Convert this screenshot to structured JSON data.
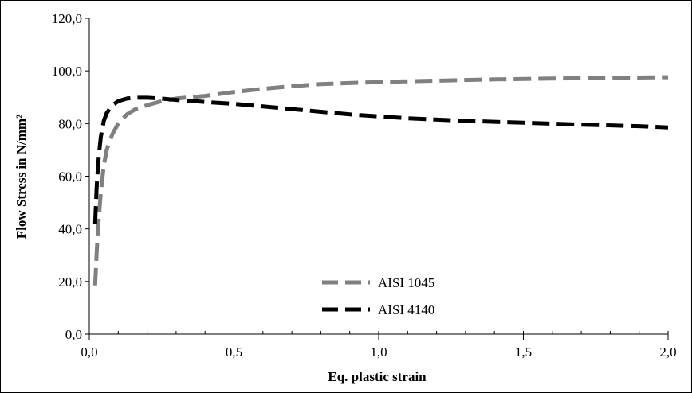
{
  "chart_data": {
    "type": "line",
    "xlabel": "Eq. plastic strain",
    "ylabel": "Flow Stress in N/mm²",
    "xlim": [
      0,
      2.0
    ],
    "ylim": [
      0,
      120
    ],
    "x_ticks": [
      "0,0",
      "0,5",
      "1,0",
      "1,5",
      "2,0"
    ],
    "y_ticks": [
      "0,0",
      "20,0",
      "40,0",
      "60,0",
      "80,0",
      "100,0",
      "120,0"
    ],
    "x_minor_step": 0.1,
    "grid": false,
    "legend_position": "bottom-center",
    "series": [
      {
        "name": "AISI 1045",
        "color": "#808080",
        "dash": "dashed",
        "x": [
          0.02,
          0.025,
          0.03,
          0.04,
          0.05,
          0.06,
          0.08,
          0.1,
          0.13,
          0.16,
          0.2,
          0.25,
          0.3,
          0.4,
          0.5,
          0.6,
          0.7,
          0.8,
          1.0,
          1.2,
          1.4,
          1.6,
          1.8,
          2.0
        ],
        "values": [
          18.5,
          30,
          40,
          54,
          64,
          70,
          76,
          80,
          83.5,
          85.5,
          87,
          88.5,
          89.5,
          90.5,
          92,
          93.2,
          94.2,
          95,
          95.8,
          96.3,
          96.8,
          97.1,
          97.4,
          97.6
        ]
      },
      {
        "name": "AISI 4140",
        "color": "#000000",
        "dash": "dashed",
        "x": [
          0.02,
          0.025,
          0.03,
          0.035,
          0.04,
          0.05,
          0.06,
          0.08,
          0.1,
          0.13,
          0.16,
          0.2,
          0.25,
          0.3,
          0.4,
          0.5,
          0.7,
          0.9,
          1.1,
          1.3,
          1.5,
          1.7,
          1.9,
          2.0
        ],
        "values": [
          42,
          55,
          64,
          70,
          75,
          81,
          84,
          87,
          88.5,
          89.5,
          89.8,
          89.8,
          89.5,
          89,
          88.2,
          87.5,
          85.5,
          83.5,
          82,
          81,
          80.3,
          79.6,
          79,
          78.5
        ]
      }
    ]
  }
}
